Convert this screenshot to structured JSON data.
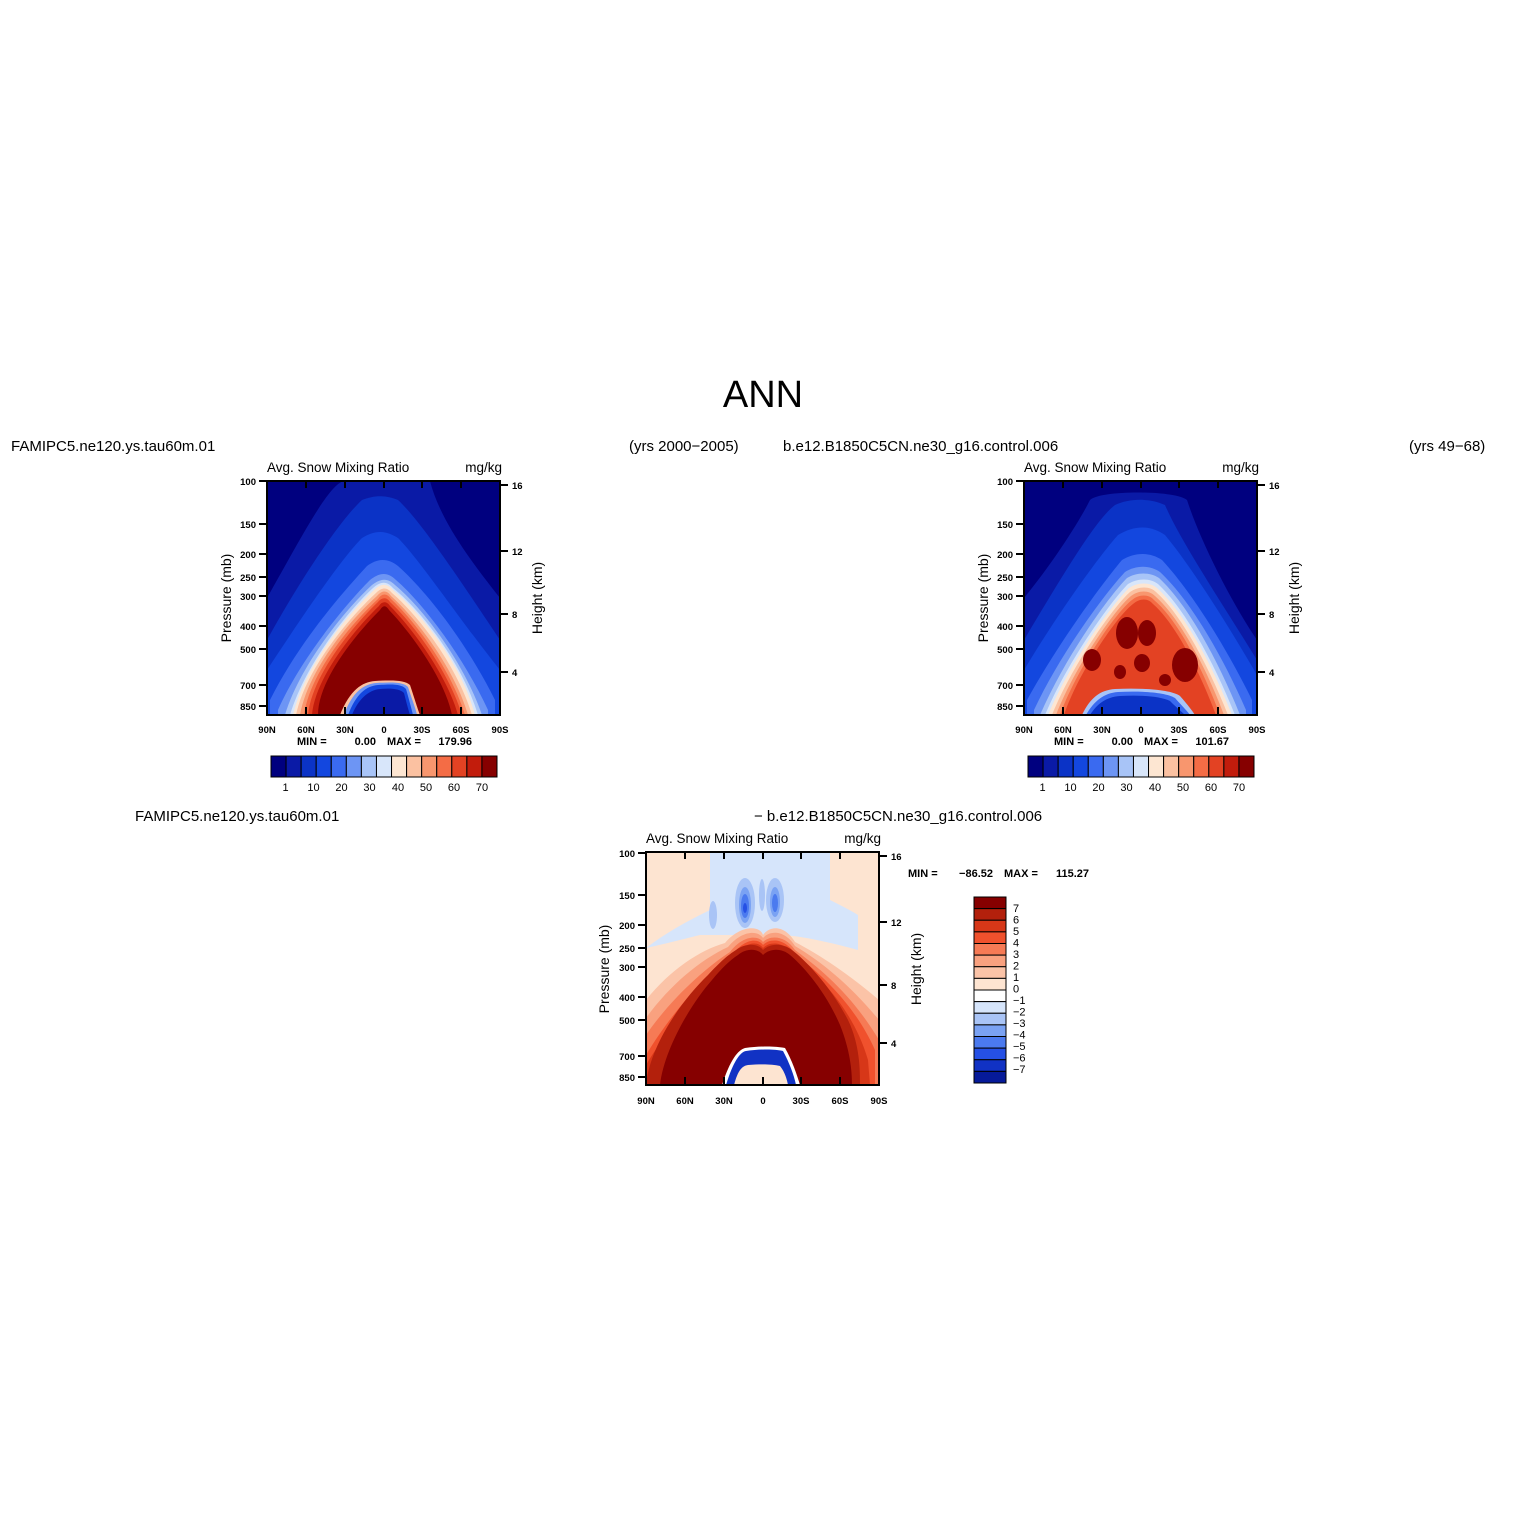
{
  "page": {
    "title": "ANN",
    "left_case": "FAMIPC5.ne120.ys.tau60m.01",
    "left_years": "(yrs 2000−2005)",
    "right_case": "b.e12.B1850C5CN.ne30_g16.control.006",
    "right_years": "(yrs 49−68)",
    "diff_case_a": "FAMIPC5.ne120.ys.tau60m.01",
    "diff_case_b": "− b.e12.B1850C5CN.ne30_g16.control.006"
  },
  "chart_data": [
    {
      "type": "heatmap",
      "variable": "Avg. Snow Mixing Ratio",
      "units": "mg/kg",
      "ylabel": "Pressure (mb)",
      "ylabel_right": "Height (km)",
      "x_ticks": [
        "90N",
        "60N",
        "30N",
        "0",
        "30S",
        "60S",
        "90S"
      ],
      "y_ticks": [
        "100",
        "150",
        "200",
        "250",
        "300",
        "400",
        "500",
        "700",
        "850"
      ],
      "y2_ticks": [
        "16",
        "12",
        "8",
        "4"
      ],
      "min_label": "MIN =",
      "min_value": "0.00",
      "max_label": "MAX =",
      "max_value": "179.96",
      "colorbar_labels": [
        "1",
        "10",
        "20",
        "30",
        "40",
        "50",
        "60",
        "70"
      ],
      "colors": [
        "#00007f",
        "#0a1aa6",
        "#0b33c6",
        "#1347df",
        "#3a6af0",
        "#6d95f4",
        "#a8c4f7",
        "#d8e6fa",
        "#fde6d2",
        "#fbc1a1",
        "#f8966e",
        "#f46c45",
        "#e34223",
        "#c21c0c",
        "#860000"
      ]
    },
    {
      "type": "heatmap",
      "variable": "Avg. Snow Mixing Ratio",
      "units": "mg/kg",
      "ylabel": "Pressure (mb)",
      "ylabel_right": "Height (km)",
      "x_ticks": [
        "90N",
        "60N",
        "30N",
        "0",
        "30S",
        "60S",
        "90S"
      ],
      "y_ticks": [
        "100",
        "150",
        "200",
        "250",
        "300",
        "400",
        "500",
        "700",
        "850"
      ],
      "y2_ticks": [
        "16",
        "12",
        "8",
        "4"
      ],
      "min_label": "MIN =",
      "min_value": "0.00",
      "max_label": "MAX =",
      "max_value": "101.67",
      "colorbar_labels": [
        "1",
        "10",
        "20",
        "30",
        "40",
        "50",
        "60",
        "70"
      ],
      "colors": [
        "#00007f",
        "#0a1aa6",
        "#0b33c6",
        "#1347df",
        "#3a6af0",
        "#6d95f4",
        "#a8c4f7",
        "#d8e6fa",
        "#fde6d2",
        "#fbc1a1",
        "#f8966e",
        "#f46c45",
        "#e34223",
        "#c21c0c",
        "#860000"
      ]
    },
    {
      "type": "heatmap",
      "variable": "Avg. Snow Mixing Ratio",
      "units": "mg/kg",
      "ylabel": "Pressure (mb)",
      "ylabel_right": "Height (km)",
      "x_ticks": [
        "90N",
        "60N",
        "30N",
        "0",
        "30S",
        "60S",
        "90S"
      ],
      "y_ticks": [
        "100",
        "150",
        "200",
        "250",
        "300",
        "400",
        "500",
        "700",
        "850"
      ],
      "y2_ticks": [
        "16",
        "12",
        "8",
        "4"
      ],
      "min_label": "MIN =",
      "min_value": "−86.52",
      "max_label": "MAX =",
      "max_value": "115.27",
      "colorbar_labels": [
        "7",
        "6",
        "5",
        "4",
        "3",
        "2",
        "1",
        "0",
        "−1",
        "−2",
        "−3",
        "−4",
        "−5",
        "−6",
        "−7"
      ],
      "colors": [
        "#860000",
        "#b3200c",
        "#d73718",
        "#f0512d",
        "#f67a55",
        "#f9a17f",
        "#fbc3a7",
        "#fde4d1",
        "#ffffff",
        "#d6e5fb",
        "#a9c4f6",
        "#7aa2f3",
        "#4b7aef",
        "#2550e5",
        "#1132c4",
        "#061a99"
      ]
    }
  ]
}
